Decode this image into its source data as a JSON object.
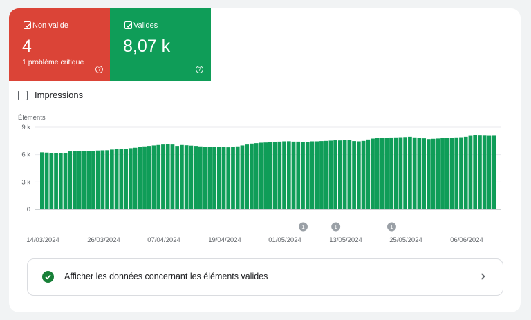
{
  "tiles": {
    "invalid": {
      "label": "Non valide",
      "value": "4",
      "sub": "1 problème critique",
      "color": "#db4437"
    },
    "valid": {
      "label": "Valides",
      "value": "8,07 k",
      "color": "#0f9d58"
    }
  },
  "impressions": {
    "label": "Impressions",
    "checked": false
  },
  "banner": {
    "text": "Afficher les données concernant les éléments valides"
  },
  "chart_data": {
    "type": "bar",
    "ylabel": "Éléments",
    "yticks": [
      "9 k",
      "6 k",
      "3 k",
      "0"
    ],
    "ylim": [
      0,
      9000
    ],
    "grid": true,
    "bar_color": "#0f9d58",
    "xtick_labels": [
      "14/03/2024",
      "26/03/2024",
      "07/04/2024",
      "19/04/2024",
      "01/05/2024",
      "13/05/2024",
      "25/05/2024",
      "06/06/2024"
    ],
    "annotations": [
      {
        "label": "1",
        "index": 56
      },
      {
        "label": "1",
        "index": 63
      },
      {
        "label": "1",
        "index": 75
      }
    ],
    "values": [
      6250,
      6220,
      6200,
      6180,
      6190,
      6170,
      6350,
      6370,
      6380,
      6390,
      6400,
      6420,
      6450,
      6470,
      6480,
      6550,
      6600,
      6620,
      6640,
      6700,
      6750,
      6850,
      6900,
      6950,
      7000,
      7050,
      7100,
      7150,
      7100,
      6950,
      7050,
      7020,
      6980,
      6950,
      6900,
      6870,
      6850,
      6820,
      6850,
      6820,
      6800,
      6840,
      6900,
      7000,
      7100,
      7200,
      7250,
      7300,
      7320,
      7350,
      7400,
      7420,
      7450,
      7460,
      7420,
      7420,
      7400,
      7380,
      7450,
      7450,
      7480,
      7500,
      7530,
      7560,
      7550,
      7580,
      7620,
      7480,
      7450,
      7500,
      7650,
      7750,
      7800,
      7840,
      7860,
      7870,
      7880,
      7900,
      7920,
      7950,
      7880,
      7850,
      7780,
      7700,
      7730,
      7760,
      7790,
      7820,
      7850,
      7880,
      7900,
      7950,
      8050,
      8100,
      8080,
      8070,
      8050,
      8060
    ]
  }
}
